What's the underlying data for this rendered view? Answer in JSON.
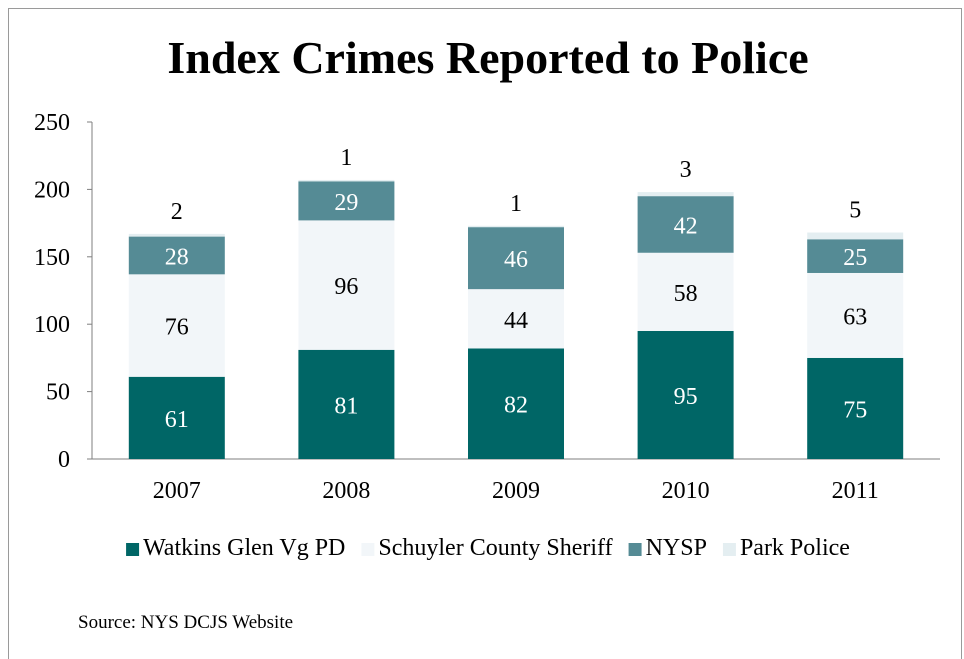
{
  "chart_data": {
    "type": "bar",
    "stacked": true,
    "title": "Index Crimes Reported to Police",
    "categories": [
      "2007",
      "2008",
      "2009",
      "2010",
      "2011"
    ],
    "series": [
      {
        "name": "Watkins Glen Vg PD",
        "values": [
          61,
          81,
          82,
          95,
          75
        ],
        "color": "#006666",
        "label_color": "#ffffff"
      },
      {
        "name": "Schuyler County Sheriff",
        "values": [
          76,
          96,
          44,
          58,
          63
        ],
        "color": "#f2f6f9",
        "label_color": "#000000"
      },
      {
        "name": "NYSP",
        "values": [
          28,
          29,
          46,
          42,
          25
        ],
        "color": "#558b95",
        "label_color": "#ffffff"
      },
      {
        "name": "Park Police",
        "values": [
          2,
          1,
          1,
          3,
          5
        ],
        "color": "#e4eef1",
        "label_color": "#000000"
      }
    ],
    "ylim": [
      0,
      250
    ],
    "yticks": [
      "0",
      "50",
      "100",
      "150",
      "200",
      "250"
    ],
    "legend_position": "bottom",
    "grid": false
  },
  "source": "Source: NYS DCJS Website"
}
